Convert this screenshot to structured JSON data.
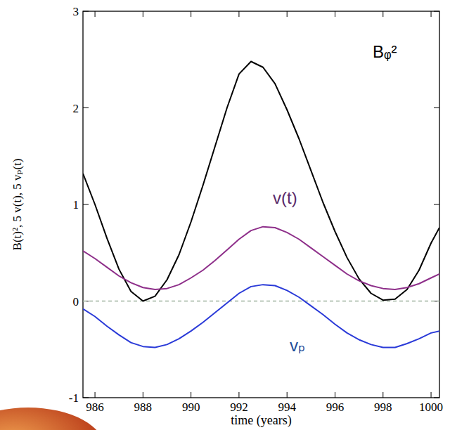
{
  "chart_data": {
    "type": "line",
    "y_label": "B(t)², 5 v(t), 5 vₚ(t)",
    "x_label": "time (years)",
    "x": [
      985.5,
      986,
      986.5,
      987,
      987.5,
      988,
      988.5,
      989,
      989.5,
      990,
      990.5,
      991,
      991.5,
      992,
      992.5,
      993,
      993.5,
      994,
      994.5,
      995,
      995.5,
      996,
      996.5,
      997,
      997.5,
      998,
      998.5,
      999,
      999.5,
      1000,
      1000.35
    ],
    "series": [
      {
        "name": "Bᵩ²",
        "color": "#000000",
        "values": [
          1.32,
          1.0,
          0.65,
          0.33,
          0.1,
          0.0,
          0.05,
          0.22,
          0.48,
          0.82,
          1.2,
          1.6,
          2.0,
          2.35,
          2.48,
          2.42,
          2.25,
          1.98,
          1.68,
          1.35,
          1.02,
          0.72,
          0.45,
          0.23,
          0.08,
          0.01,
          0.02,
          0.12,
          0.32,
          0.6,
          0.76
        ]
      },
      {
        "name": "v(t)",
        "color": "#8e2f8a",
        "values": [
          0.52,
          0.44,
          0.35,
          0.26,
          0.19,
          0.14,
          0.12,
          0.13,
          0.17,
          0.24,
          0.32,
          0.42,
          0.53,
          0.64,
          0.73,
          0.77,
          0.76,
          0.71,
          0.64,
          0.55,
          0.46,
          0.37,
          0.28,
          0.21,
          0.16,
          0.13,
          0.12,
          0.14,
          0.18,
          0.24,
          0.28
        ]
      },
      {
        "name": "vₚ",
        "color": "#2a3ad8",
        "values": [
          -0.08,
          -0.16,
          -0.26,
          -0.35,
          -0.43,
          -0.47,
          -0.48,
          -0.45,
          -0.39,
          -0.31,
          -0.22,
          -0.12,
          -0.02,
          0.08,
          0.15,
          0.17,
          0.16,
          0.11,
          0.04,
          -0.05,
          -0.14,
          -0.24,
          -0.33,
          -0.4,
          -0.45,
          -0.48,
          -0.48,
          -0.44,
          -0.39,
          -0.33,
          -0.31
        ]
      }
    ],
    "reference_lines": [
      0
    ],
    "xlim": [
      985.5,
      1000.35
    ],
    "ylim": [
      -1,
      3
    ],
    "xticks": [
      986,
      988,
      990,
      992,
      994,
      996,
      998,
      1000
    ],
    "yticks": [
      -1,
      0,
      1,
      2,
      3
    ],
    "grid": false
  }
}
